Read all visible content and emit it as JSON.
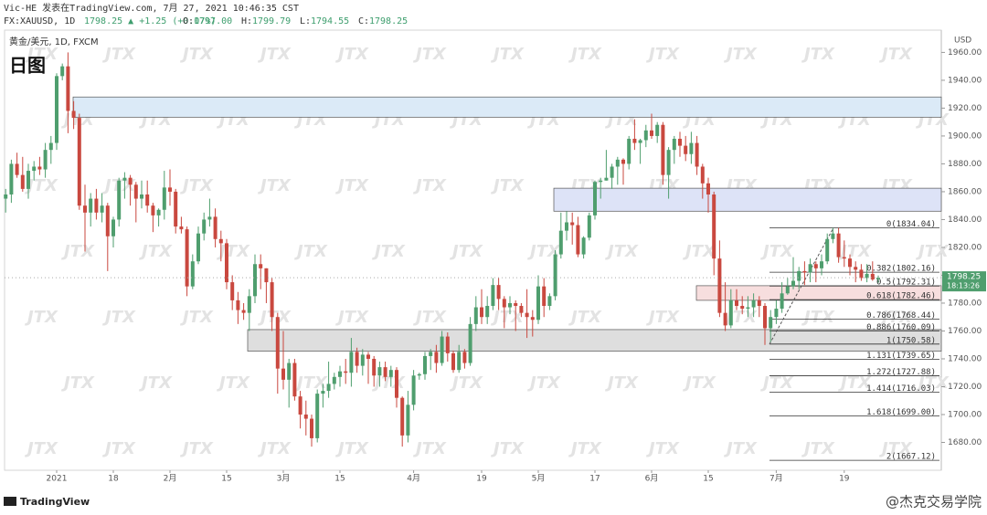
{
  "header": {
    "line1": "Vic-HE 发表在TradingView.com, 7月 27, 2021 10:46:35 CST",
    "symbol": "FX:XAUUSD, 1D",
    "change": "1798.25 ▲ +1.25 (+0.07%)",
    "ohlc": [
      {
        "key": "O:",
        "value": "1797.00"
      },
      {
        "key": "H:",
        "value": "1799.79"
      },
      {
        "key": "L:",
        "value": "1794.55"
      },
      {
        "key": "C:",
        "value": "1798.25"
      }
    ]
  },
  "chart_data": {
    "type": "candlestick",
    "title": "黄金/美元, 1D, FXCM",
    "subtitle": "日图",
    "y_axis_label": "USD",
    "up_color": "#4f9e6e",
    "down_color": "#c9483f",
    "grid": false,
    "watermark": "JTX",
    "ylim": [
      1660,
      1976
    ],
    "yticks": [
      {
        "value": 1680,
        "label": "1680.00"
      },
      {
        "value": 1700,
        "label": "1700.00"
      },
      {
        "value": 1720,
        "label": "1720.00"
      },
      {
        "value": 1740,
        "label": "1740.00"
      },
      {
        "value": 1760,
        "label": "1760.00"
      },
      {
        "value": 1780,
        "label": "1780.00"
      },
      {
        "value": 1800,
        "label": "1800.00"
      },
      {
        "value": 1820,
        "label": "1820.00"
      },
      {
        "value": 1840,
        "label": "1840.00"
      },
      {
        "value": 1860,
        "label": "1860.00"
      },
      {
        "value": 1880,
        "label": "1880.00"
      },
      {
        "value": 1900,
        "label": "1900.00"
      },
      {
        "value": 1920,
        "label": "1920.00"
      },
      {
        "value": 1940,
        "label": "1940.00"
      },
      {
        "value": 1960,
        "label": "1960.00"
      }
    ],
    "xticks": [
      {
        "value": 9,
        "label": "2021"
      },
      {
        "value": 19,
        "label": "18"
      },
      {
        "value": 29,
        "label": "2月"
      },
      {
        "value": 39,
        "label": "15"
      },
      {
        "value": 49,
        "label": "3月"
      },
      {
        "value": 59,
        "label": "15"
      },
      {
        "value": 72,
        "label": "4月"
      },
      {
        "value": 84,
        "label": "19"
      },
      {
        "value": 94,
        "label": "5月"
      },
      {
        "value": 104,
        "label": "17"
      },
      {
        "value": 114,
        "label": "6月"
      },
      {
        "value": 124,
        "label": "15"
      },
      {
        "value": 136,
        "label": "7月"
      },
      {
        "value": 148,
        "label": "19"
      }
    ],
    "last_price": {
      "value": 1798.25,
      "label": "1798.25"
    },
    "countdown": "18:13:26",
    "zones": [
      {
        "top": 1928,
        "bottom": 1913.5,
        "color": "#dbeaf7"
      },
      {
        "top": 1862.5,
        "bottom": 1846,
        "color": "#dde3f7"
      },
      {
        "top": 1761,
        "bottom": 1745.5,
        "color": "#dedede"
      },
      {
        "top": 1792.5,
        "bottom": 1782,
        "color": "#f7dede"
      }
    ],
    "fib_levels": [
      {
        "value": 1834.04,
        "label": "0(1834.04)"
      },
      {
        "value": 1802.16,
        "label": "0.382(1802.16)"
      },
      {
        "value": 1792.31,
        "label": "0.5(1792.31)"
      },
      {
        "value": 1782.46,
        "label": "0.618(1782.46)"
      },
      {
        "value": 1768.44,
        "label": "0.786(1768.44)"
      },
      {
        "value": 1760.09,
        "label": "0.886(1760.09)"
      },
      {
        "value": 1750.58,
        "label": "1(1750.58)"
      },
      {
        "value": 1739.65,
        "label": "1.131(1739.65)"
      },
      {
        "value": 1727.88,
        "label": "1.272(1727.88)"
      },
      {
        "value": 1716.03,
        "label": "1.414(1716.03)"
      },
      {
        "value": 1699.0,
        "label": "1.618(1699.00)"
      },
      {
        "value": 1667.12,
        "label": "2(1667.12)"
      }
    ],
    "candles": [
      [
        1855,
        1862,
        1845,
        1858
      ],
      [
        1858,
        1883,
        1852,
        1880
      ],
      [
        1880,
        1888,
        1870,
        1872
      ],
      [
        1872,
        1885,
        1860,
        1862
      ],
      [
        1862,
        1880,
        1855,
        1875
      ],
      [
        1875,
        1882,
        1868,
        1878
      ],
      [
        1878,
        1885,
        1872,
        1876
      ],
      [
        1876,
        1895,
        1870,
        1890
      ],
      [
        1890,
        1900,
        1880,
        1895
      ],
      [
        1895,
        1945,
        1890,
        1943
      ],
      [
        1943,
        1952,
        1940,
        1950
      ],
      [
        1950,
        1960,
        1902,
        1918
      ],
      [
        1918,
        1925,
        1905,
        1913
      ],
      [
        1913,
        1916,
        1847,
        1850
      ],
      [
        1850,
        1865,
        1817,
        1845
      ],
      [
        1845,
        1859,
        1835,
        1855
      ],
      [
        1855,
        1862,
        1840,
        1845
      ],
      [
        1845,
        1859,
        1838,
        1850
      ],
      [
        1850,
        1852,
        1803,
        1828
      ],
      [
        1828,
        1842,
        1820,
        1840
      ],
      [
        1840,
        1870,
        1835,
        1868
      ],
      [
        1868,
        1874,
        1855,
        1870
      ],
      [
        1870,
        1872,
        1850,
        1865
      ],
      [
        1865,
        1867,
        1838,
        1855
      ],
      [
        1855,
        1868,
        1848,
        1858
      ],
      [
        1858,
        1868,
        1845,
        1850
      ],
      [
        1850,
        1852,
        1831,
        1843
      ],
      [
        1843,
        1848,
        1835,
        1847
      ],
      [
        1847,
        1875,
        1840,
        1863
      ],
      [
        1863,
        1876,
        1850,
        1860
      ],
      [
        1860,
        1862,
        1830,
        1835
      ],
      [
        1835,
        1842,
        1830,
        1833
      ],
      [
        1833,
        1835,
        1785,
        1792
      ],
      [
        1792,
        1815,
        1790,
        1810
      ],
      [
        1810,
        1835,
        1808,
        1830
      ],
      [
        1830,
        1845,
        1825,
        1840
      ],
      [
        1840,
        1855,
        1835,
        1842
      ],
      [
        1842,
        1848,
        1820,
        1826
      ],
      [
        1826,
        1832,
        1810,
        1823
      ],
      [
        1823,
        1826,
        1790,
        1795
      ],
      [
        1795,
        1800,
        1775,
        1782
      ],
      [
        1782,
        1788,
        1765,
        1775
      ],
      [
        1775,
        1780,
        1768,
        1773
      ],
      [
        1773,
        1790,
        1760,
        1785
      ],
      [
        1785,
        1815,
        1780,
        1808
      ],
      [
        1808,
        1815,
        1790,
        1805
      ],
      [
        1805,
        1805,
        1780,
        1795
      ],
      [
        1795,
        1798,
        1760,
        1770
      ],
      [
        1770,
        1773,
        1715,
        1733
      ],
      [
        1733,
        1760,
        1718,
        1725
      ],
      [
        1725,
        1740,
        1705,
        1737
      ],
      [
        1737,
        1740,
        1710,
        1713
      ],
      [
        1713,
        1717,
        1690,
        1700
      ],
      [
        1700,
        1710,
        1685,
        1697
      ],
      [
        1697,
        1700,
        1677,
        1683
      ],
      [
        1683,
        1718,
        1680,
        1715
      ],
      [
        1715,
        1722,
        1705,
        1717
      ],
      [
        1717,
        1738,
        1712,
        1722
      ],
      [
        1722,
        1730,
        1718,
        1727
      ],
      [
        1727,
        1735,
        1720,
        1731
      ],
      [
        1731,
        1740,
        1722,
        1730
      ],
      [
        1730,
        1755,
        1720,
        1745
      ],
      [
        1745,
        1748,
        1730,
        1735
      ],
      [
        1735,
        1747,
        1728,
        1743
      ],
      [
        1743,
        1745,
        1722,
        1740
      ],
      [
        1740,
        1742,
        1720,
        1728
      ],
      [
        1728,
        1738,
        1720,
        1734
      ],
      [
        1734,
        1738,
        1724,
        1727
      ],
      [
        1727,
        1735,
        1720,
        1732
      ],
      [
        1732,
        1734,
        1705,
        1712
      ],
      [
        1712,
        1713,
        1677,
        1685
      ],
      [
        1685,
        1717,
        1680,
        1707
      ],
      [
        1707,
        1732,
        1703,
        1728
      ],
      [
        1728,
        1730,
        1725,
        1729
      ],
      [
        1729,
        1745,
        1725,
        1742
      ],
      [
        1742,
        1747,
        1732,
        1745
      ],
      [
        1745,
        1750,
        1730,
        1737
      ],
      [
        1737,
        1760,
        1735,
        1756
      ],
      [
        1756,
        1759,
        1738,
        1744
      ],
      [
        1744,
        1746,
        1730,
        1732
      ],
      [
        1732,
        1750,
        1730,
        1745
      ],
      [
        1745,
        1747,
        1733,
        1737
      ],
      [
        1737,
        1770,
        1735,
        1765
      ],
      [
        1765,
        1785,
        1760,
        1777
      ],
      [
        1777,
        1790,
        1765,
        1770
      ],
      [
        1770,
        1785,
        1765,
        1778
      ],
      [
        1778,
        1798,
        1775,
        1793
      ],
      [
        1793,
        1798,
        1775,
        1783
      ],
      [
        1783,
        1785,
        1762,
        1777
      ],
      [
        1777,
        1785,
        1772,
        1780
      ],
      [
        1780,
        1782,
        1760,
        1778
      ],
      [
        1778,
        1780,
        1770,
        1773
      ],
      [
        1773,
        1790,
        1755,
        1770
      ],
      [
        1770,
        1775,
        1756,
        1768
      ],
      [
        1768,
        1800,
        1765,
        1792
      ],
      [
        1792,
        1798,
        1770,
        1778
      ],
      [
        1778,
        1787,
        1775,
        1785
      ],
      [
        1785,
        1818,
        1782,
        1815
      ],
      [
        1815,
        1845,
        1812,
        1832
      ],
      [
        1832,
        1846,
        1825,
        1838
      ],
      [
        1838,
        1845,
        1822,
        1836
      ],
      [
        1836,
        1842,
        1813,
        1815
      ],
      [
        1815,
        1828,
        1812,
        1827
      ],
      [
        1827,
        1845,
        1825,
        1843
      ],
      [
        1843,
        1868,
        1840,
        1867
      ],
      [
        1867,
        1870,
        1855,
        1868
      ],
      [
        1868,
        1890,
        1868,
        1870
      ],
      [
        1870,
        1880,
        1862,
        1878
      ],
      [
        1878,
        1885,
        1865,
        1883
      ],
      [
        1883,
        1884,
        1865,
        1880
      ],
      [
        1880,
        1900,
        1876,
        1898
      ],
      [
        1898,
        1912,
        1890,
        1895
      ],
      [
        1895,
        1898,
        1880,
        1897
      ],
      [
        1897,
        1908,
        1892,
        1904
      ],
      [
        1904,
        1916,
        1898,
        1900
      ],
      [
        1900,
        1910,
        1895,
        1908
      ],
      [
        1908,
        1910,
        1865,
        1872
      ],
      [
        1872,
        1892,
        1855,
        1890
      ],
      [
        1890,
        1900,
        1880,
        1898
      ],
      [
        1898,
        1903,
        1885,
        1893
      ],
      [
        1893,
        1900,
        1882,
        1887
      ],
      [
        1887,
        1903,
        1880,
        1895
      ],
      [
        1895,
        1900,
        1872,
        1878
      ],
      [
        1878,
        1880,
        1855,
        1866
      ],
      [
        1866,
        1870,
        1845,
        1858
      ],
      [
        1858,
        1860,
        1800,
        1812
      ],
      [
        1812,
        1825,
        1770,
        1773
      ],
      [
        1773,
        1795,
        1760,
        1764
      ],
      [
        1764,
        1790,
        1762,
        1782
      ],
      [
        1782,
        1790,
        1775,
        1778
      ],
      [
        1778,
        1785,
        1772,
        1776
      ],
      [
        1776,
        1785,
        1770,
        1777
      ],
      [
        1777,
        1787,
        1770,
        1782
      ],
      [
        1782,
        1785,
        1770,
        1778
      ],
      [
        1778,
        1780,
        1750,
        1762
      ],
      [
        1762,
        1775,
        1752,
        1770
      ],
      [
        1770,
        1782,
        1765,
        1776
      ],
      [
        1776,
        1795,
        1773,
        1787
      ],
      [
        1787,
        1798,
        1786,
        1792
      ],
      [
        1792,
        1813,
        1790,
        1796
      ],
      [
        1796,
        1806,
        1790,
        1803
      ],
      [
        1803,
        1810,
        1793,
        1802
      ],
      [
        1802,
        1812,
        1795,
        1808
      ],
      [
        1808,
        1810,
        1795,
        1805
      ],
      [
        1805,
        1815,
        1800,
        1810
      ],
      [
        1810,
        1830,
        1808,
        1826
      ],
      [
        1826,
        1834,
        1823,
        1830
      ],
      [
        1830,
        1834,
        1809,
        1813
      ],
      [
        1813,
        1825,
        1806,
        1812
      ],
      [
        1812,
        1815,
        1800,
        1806
      ],
      [
        1806,
        1810,
        1795,
        1804
      ],
      [
        1804,
        1808,
        1796,
        1798
      ],
      [
        1798,
        1808,
        1795,
        1801
      ],
      [
        1801,
        1810,
        1796,
        1797
      ],
      [
        1797,
        1799.79,
        1794.55,
        1798.25
      ]
    ]
  },
  "footer": {
    "brand": "TradingView",
    "credit": "@杰克交易学院"
  }
}
